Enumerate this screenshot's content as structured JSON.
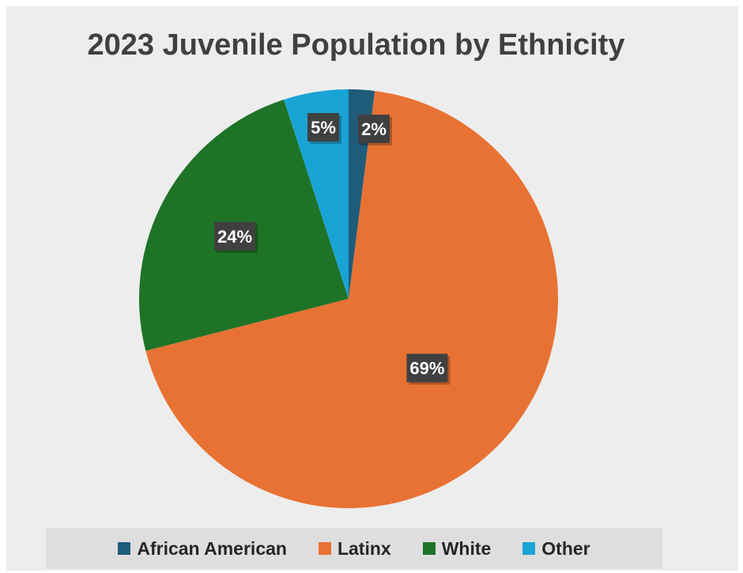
{
  "chart_data": {
    "type": "pie",
    "title": "2023 Juvenile Population by Ethnicity",
    "categories": [
      "African American",
      "Latinx",
      "White",
      "Other"
    ],
    "values": [
      2,
      69,
      24,
      5
    ],
    "data_labels": [
      "2%",
      "69%",
      "24%",
      "5%"
    ],
    "colors": [
      "#1f5c7a",
      "#e87234",
      "#1e7326",
      "#19a4d6"
    ],
    "legend_position": "bottom",
    "start_angle_deg": 0,
    "direction": "clockwise"
  }
}
